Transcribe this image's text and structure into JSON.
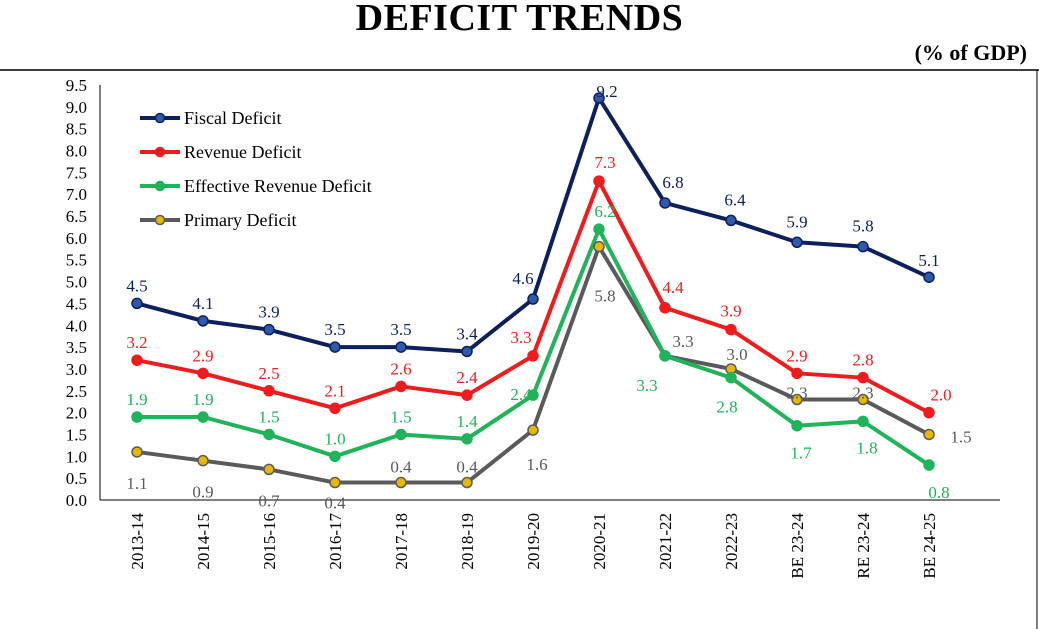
{
  "chart_data": {
    "type": "line",
    "title": "DEFICIT TRENDS",
    "unit_label": "(% of GDP)",
    "xlabel": "",
    "ylabel": "",
    "ylim": [
      0,
      9.5
    ],
    "yticks": [
      "0.0",
      "0.5",
      "1.0",
      "1.5",
      "2.0",
      "2.5",
      "3.0",
      "3.5",
      "4.0",
      "4.5",
      "5.0",
      "5.5",
      "6.0",
      "6.5",
      "7.0",
      "7.5",
      "8.0",
      "8.5",
      "9.0",
      "9.5"
    ],
    "categories": [
      "2013-14",
      "2014-15",
      "2015-16",
      "2016-17",
      "2017-18",
      "2018-19",
      "2019-20",
      "2020-21",
      "2021-22",
      "2022-23",
      "BE 23-24",
      "RE 23-24",
      "BE 24-25"
    ],
    "grid": false,
    "legend_position": "top-left",
    "series": [
      {
        "name": "Fiscal Deficit",
        "color": "#0d1f5c",
        "marker_fill": "#2e5aac",
        "values": [
          4.5,
          4.1,
          3.9,
          3.5,
          3.5,
          3.4,
          4.6,
          9.2,
          6.8,
          6.4,
          5.9,
          5.8,
          5.1
        ],
        "labels": [
          "4.5",
          "4.1",
          "3.9",
          "3.5",
          "3.5",
          "3.4",
          "4.6",
          "9.2",
          "6.8",
          "6.4",
          "5.9",
          "5.8",
          "5.1"
        ]
      },
      {
        "name": "Revenue Deficit",
        "color": "#ee1c1c",
        "marker_fill": "#ee1c1c",
        "values": [
          3.2,
          2.9,
          2.5,
          2.1,
          2.6,
          2.4,
          3.3,
          7.3,
          4.4,
          3.9,
          2.9,
          2.8,
          2.0
        ],
        "labels": [
          "3.2",
          "2.9",
          "2.5",
          "2.1",
          "2.6",
          "2.4",
          "3.3",
          "7.3",
          "4.4",
          "3.9",
          "2.9",
          "2.8",
          "2.0"
        ]
      },
      {
        "name": "Effective Revenue Deficit",
        "color": "#1fb35a",
        "marker_fill": "#1fb35a",
        "values": [
          1.9,
          1.9,
          1.5,
          1.0,
          1.5,
          1.4,
          2.4,
          6.2,
          3.3,
          2.8,
          1.7,
          1.8,
          0.8
        ],
        "labels": [
          "1.9",
          "1.9",
          "1.5",
          "1.0",
          "1.5",
          "1.4",
          "2.4",
          "6.2",
          "3.3",
          "2.8",
          "1.7",
          "1.8",
          "0.8"
        ]
      },
      {
        "name": "Primary Deficit",
        "color": "#5a5a5a",
        "marker_fill": "#e8b800",
        "values": [
          1.1,
          0.9,
          0.7,
          0.4,
          0.4,
          0.4,
          1.6,
          5.8,
          3.3,
          3.0,
          2.3,
          2.3,
          1.5
        ],
        "labels": [
          "1.1",
          "0.9",
          "0.7",
          "0.4",
          "0.4",
          "0.4",
          "1.6",
          "5.8",
          "3.3",
          "3.0",
          "2.3",
          "2.3",
          "1.5"
        ]
      }
    ]
  }
}
